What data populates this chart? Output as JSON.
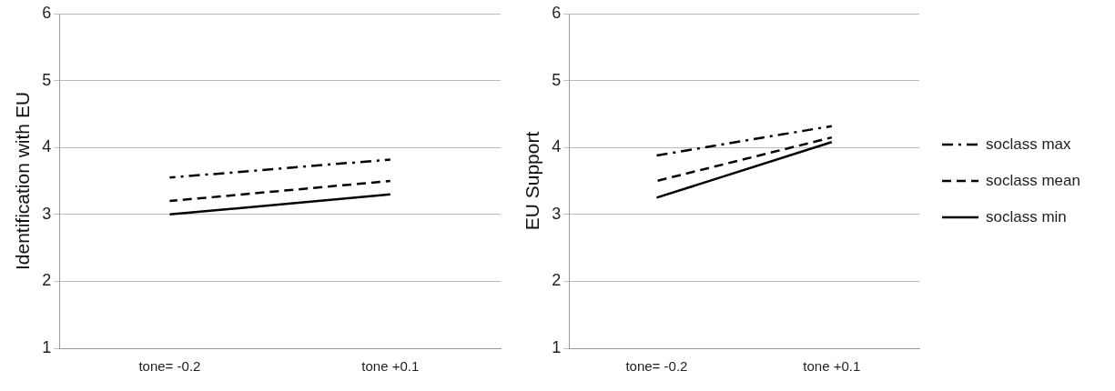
{
  "chart_data": [
    {
      "type": "line",
      "ylabel": "Identification with EU",
      "categories": [
        "tone= -0.2",
        "tone +0.1"
      ],
      "ylim": [
        1,
        6
      ],
      "yticks": [
        1,
        2,
        3,
        4,
        5,
        6
      ],
      "grid": "y",
      "legend": false,
      "marker": "none",
      "series": [
        {
          "color": "#000000",
          "line_style": "dashdot",
          "values": [
            3.55,
            3.82
          ]
        },
        {
          "color": "#000000",
          "line_style": "dashed",
          "values": [
            3.2,
            3.5
          ]
        },
        {
          "color": "#000000",
          "line_style": "solid",
          "values": [
            3.0,
            3.3
          ]
        }
      ]
    },
    {
      "type": "line",
      "ylabel": "EU Support",
      "categories": [
        "tone= -0.2",
        "tone +0.1"
      ],
      "ylim": [
        1,
        6
      ],
      "yticks": [
        1,
        2,
        3,
        4,
        5,
        6
      ],
      "grid": "y",
      "legend": "right",
      "marker": "none",
      "series": [
        {
          "name": "soclass max",
          "color": "#000000",
          "line_style": "dashdot",
          "values": [
            3.88,
            4.32
          ]
        },
        {
          "name": "soclass mean",
          "color": "#000000",
          "line_style": "dashed",
          "values": [
            3.5,
            4.15
          ]
        },
        {
          "name": "soclass min",
          "color": "#000000",
          "line_style": "solid",
          "values": [
            3.25,
            4.08
          ]
        }
      ]
    }
  ]
}
